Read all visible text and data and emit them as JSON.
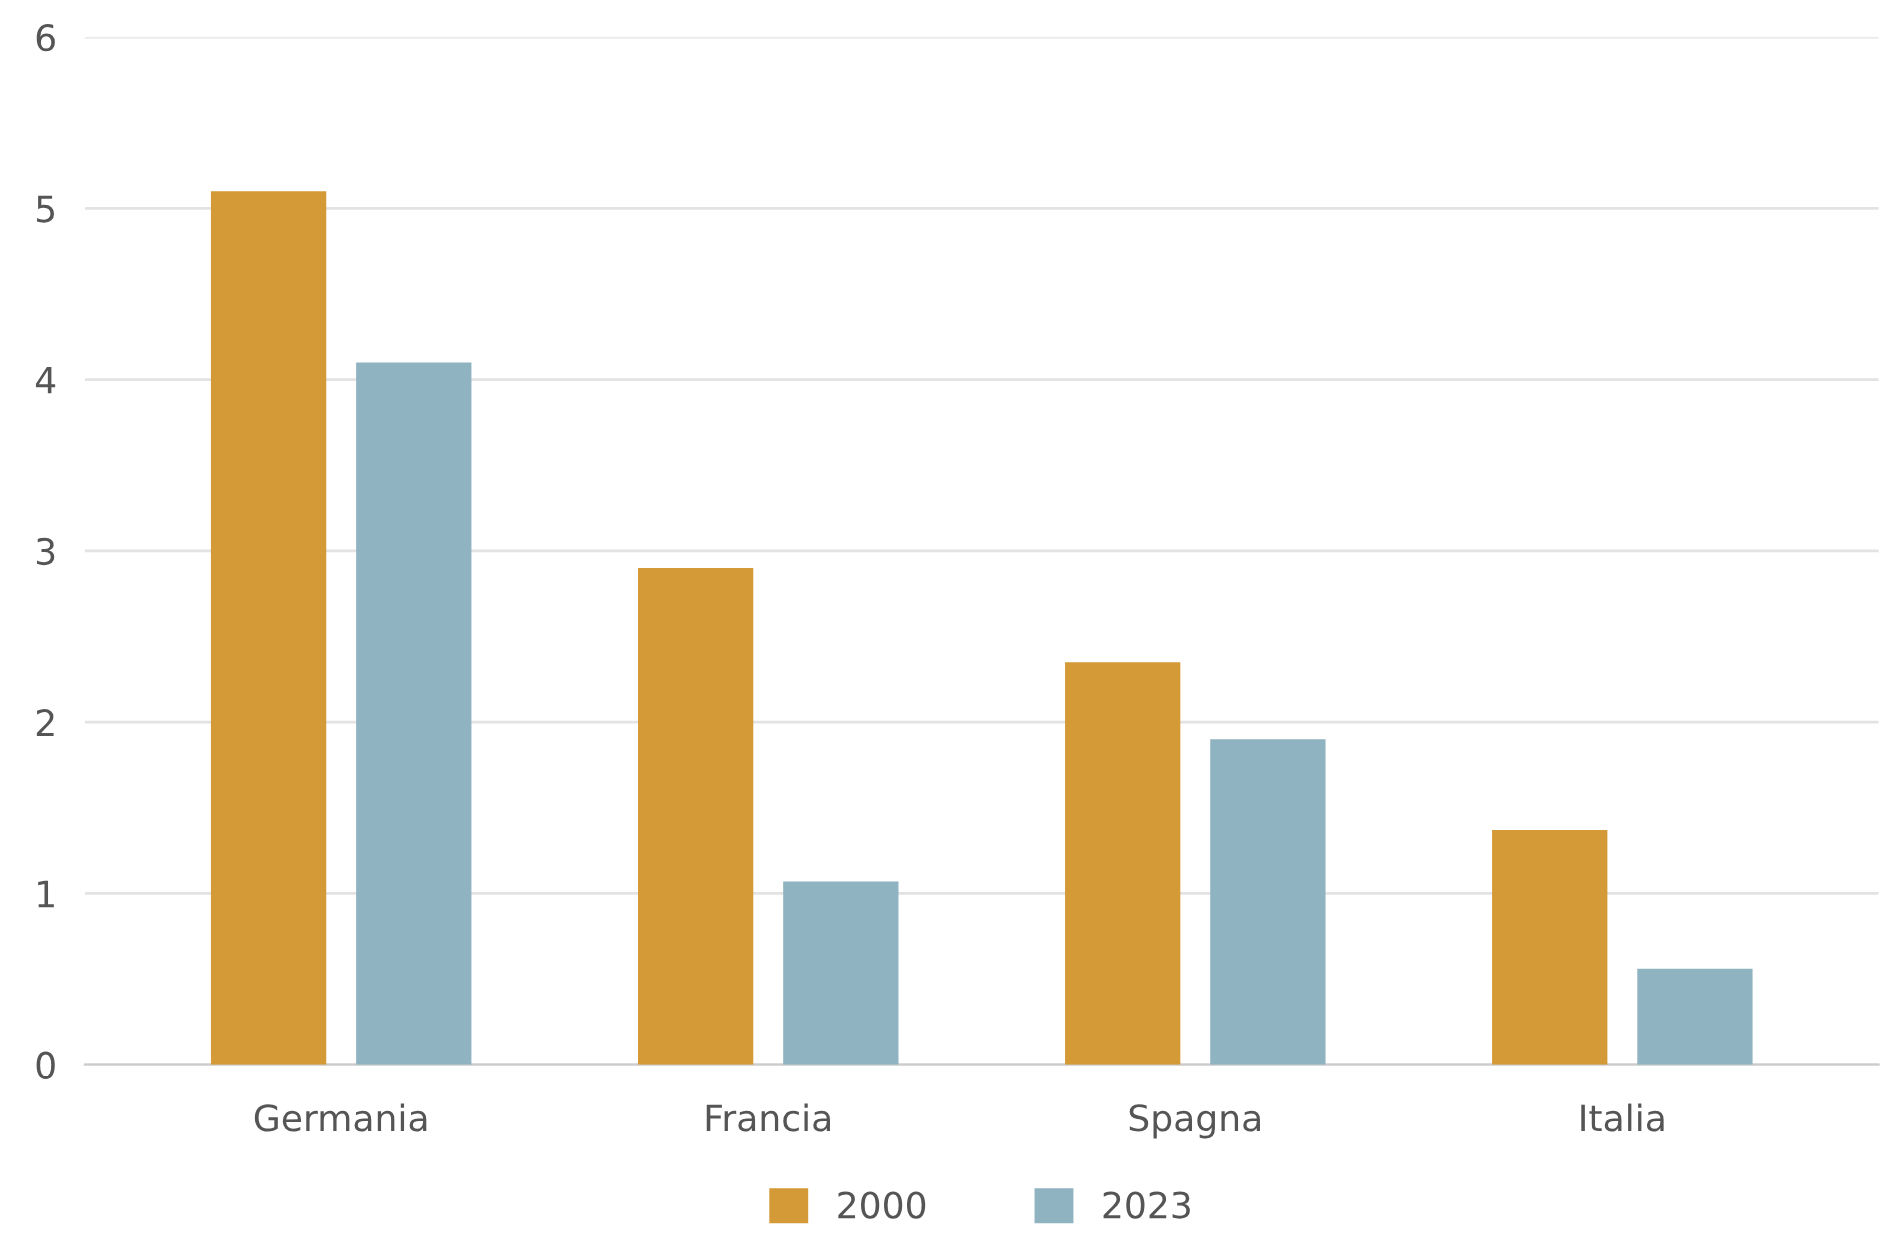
{
  "chart_data": {
    "type": "bar",
    "categories": [
      "Germania",
      "Francia",
      "Spagna",
      "Italia"
    ],
    "series": [
      {
        "name": "2000",
        "color": "#d39a37",
        "values": [
          5.1,
          2.9,
          2.35,
          1.37
        ]
      },
      {
        "name": "2023",
        "color": "#8fb3c0",
        "values": [
          4.1,
          1.07,
          1.9,
          0.56
        ]
      }
    ],
    "ylim": [
      0,
      6
    ],
    "yticks": [
      0,
      1,
      2,
      3,
      4,
      5,
      6
    ],
    "grid": "y",
    "legend": "bottom"
  }
}
